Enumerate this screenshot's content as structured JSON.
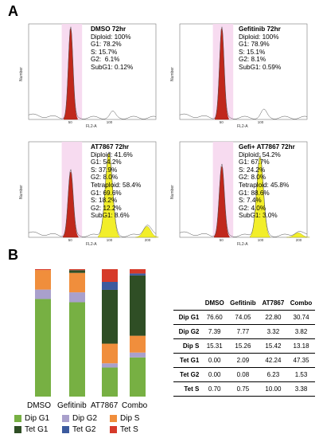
{
  "panels": {
    "a": "A",
    "b": "B"
  },
  "flow": [
    {
      "title": "DMSO 72hr",
      "lines": [
        "Diploid: 100%",
        "G1: 78.2%",
        "S: 15.7%",
        "G2:  6.1%",
        "SubG1: 0.12%"
      ],
      "x_title": "FL2-A",
      "y_title": "Number",
      "x_ticks": [
        "50",
        "100"
      ]
    },
    {
      "title": "Gefitinib 72hr",
      "lines": [
        "Diploid: 100%",
        "G1: 78.9%",
        "S: 15.1%",
        "G2: 8.1%",
        "SubG1: 0.59%"
      ],
      "x_title": "FL2-A",
      "y_title": "Number",
      "x_ticks": [
        "50",
        "100"
      ]
    },
    {
      "title": "AT7867 72hr",
      "lines": [
        "Diploid: 41.6%",
        "G1: 54.2%",
        "S: 37.9%",
        "G2: 8.0%",
        "Tetraploid: 58.4%",
        "G1: 69.6%",
        "S: 18.2%",
        "G2: 12.2%",
        "SubG1: 8.6%"
      ],
      "x_title": "FL2-A",
      "y_title": "Number",
      "x_ticks": [
        "50",
        "100",
        "200"
      ]
    },
    {
      "title": "Gefi+ AT7867 72hr",
      "lines": [
        "Diploid: 54.2%",
        "G1: 67.7%",
        "S: 24.2%",
        "G2: 8.0%",
        "Tetraploid: 45.8%",
        "G1: 88.6%",
        "S: 7.4%",
        "G2: 4.0%",
        "SubG1: 3.0%"
      ],
      "x_title": "FL2-A",
      "y_title": "Number",
      "x_ticks": [
        "50",
        "100",
        "200"
      ]
    }
  ],
  "chart_data": {
    "type": "bar",
    "stacked": true,
    "normalized_percent": true,
    "categories": [
      "DMSO",
      "Gefitinib",
      "AT7867",
      "Combo"
    ],
    "series": [
      {
        "name": "Dip G1",
        "color": "#77b043",
        "values": [
          76.6,
          74.05,
          22.8,
          30.74
        ]
      },
      {
        "name": "Dip G2",
        "color": "#a9a0cc",
        "values": [
          7.39,
          7.77,
          3.32,
          3.82
        ]
      },
      {
        "name": "Dip S",
        "color": "#f08e3c",
        "values": [
          15.31,
          15.26,
          15.42,
          13.18
        ]
      },
      {
        "name": "Tet G1",
        "color": "#2f4e25",
        "values": [
          0.0,
          2.09,
          42.24,
          47.35
        ]
      },
      {
        "name": "Tet G2",
        "color": "#3c5a9e",
        "values": [
          0.0,
          0.08,
          6.23,
          1.53
        ]
      },
      {
        "name": "Tet S",
        "color": "#d63a2a",
        "values": [
          0.7,
          0.75,
          10.0,
          3.38
        ]
      }
    ],
    "legend_placement": "bottom"
  },
  "table": {
    "corner": "",
    "headers": [
      "DMSO",
      "Gefitinib",
      "AT7867",
      "Combo"
    ],
    "rows": [
      {
        "label": "Dip G1",
        "cells": [
          "76.60",
          "74.05",
          "22.80",
          "30.74"
        ]
      },
      {
        "label": "Dip G2",
        "cells": [
          "7.39",
          "7.77",
          "3.32",
          "3.82"
        ]
      },
      {
        "label": "Dip S",
        "cells": [
          "15.31",
          "15.26",
          "15.42",
          "13.18"
        ]
      },
      {
        "label": "Tet G1",
        "cells": [
          "0.00",
          "2.09",
          "42.24",
          "47.35"
        ]
      },
      {
        "label": "Tet G2",
        "cells": [
          "0.00",
          "0.08",
          "6.23",
          "1.53"
        ]
      },
      {
        "label": "Tet S",
        "cells": [
          "0.70",
          "0.75",
          "10.00",
          "3.38"
        ]
      }
    ]
  }
}
